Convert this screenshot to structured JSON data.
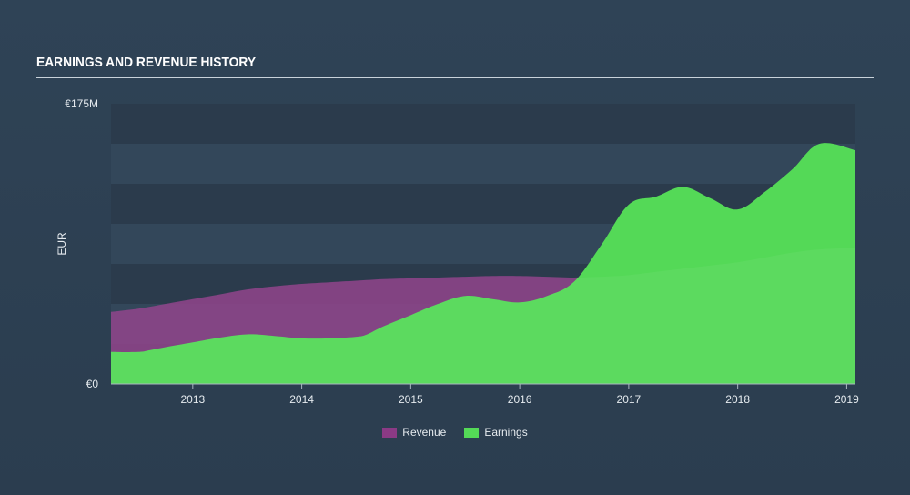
{
  "header": {
    "title": "EARNINGS AND REVENUE HISTORY"
  },
  "colors": {
    "revenue": "#8b3a85",
    "earnings": "#54d957",
    "earnings_band": "#4fcf55",
    "band_dark": "#2b3b4c",
    "band_light": "#33475a"
  },
  "chart_data": {
    "type": "area",
    "title": "EARNINGS AND REVENUE HISTORY",
    "ylabel": "EUR",
    "ylim": [
      0,
      175
    ],
    "y_tick_labels": {
      "top": "€175M",
      "bottom": "€0"
    },
    "xlim": [
      2012.25,
      2019.08
    ],
    "x_ticks": [
      {
        "value": 2013,
        "label": "2013"
      },
      {
        "value": 2014,
        "label": "2014"
      },
      {
        "value": 2015,
        "label": "2015"
      },
      {
        "value": 2016,
        "label": "2016"
      },
      {
        "value": 2017,
        "label": "2017"
      },
      {
        "value": 2018,
        "label": "2018"
      },
      {
        "value": 2019,
        "label": "2019"
      }
    ],
    "series": [
      {
        "name": "Revenue",
        "x": [
          2012.25,
          2012.5,
          2012.75,
          2013.0,
          2013.25,
          2013.5,
          2013.75,
          2014.0,
          2014.25,
          2014.5,
          2014.75,
          2015.0,
          2015.25,
          2015.5,
          2015.75,
          2016.0,
          2016.25,
          2016.5,
          2016.75,
          2017.0,
          2017.25,
          2017.5,
          2017.75,
          2018.0,
          2018.25,
          2018.5,
          2018.75,
          2019.08
        ],
        "values": [
          45,
          47,
          50,
          53,
          56,
          59,
          61,
          62.5,
          63.5,
          64.5,
          65.5,
          66,
          66.5,
          67,
          67.5,
          67.5,
          67,
          66.5,
          67,
          68,
          70,
          72,
          74,
          76,
          79,
          82,
          84,
          85
        ]
      },
      {
        "name": "Earnings",
        "x": [
          2012.25,
          2012.5,
          2012.6,
          2012.75,
          2013.0,
          2013.25,
          2013.5,
          2013.75,
          2014.0,
          2014.25,
          2014.5,
          2014.6,
          2014.75,
          2015.0,
          2015.25,
          2015.5,
          2015.75,
          2016.0,
          2016.25,
          2016.5,
          2016.75,
          2017.0,
          2017.25,
          2017.5,
          2017.75,
          2018.0,
          2018.25,
          2018.5,
          2018.75,
          2019.08
        ],
        "values": [
          20,
          20,
          21,
          23,
          26,
          29,
          31,
          30,
          28.5,
          28.5,
          29.5,
          31,
          36,
          43,
          50,
          55,
          53,
          51,
          55,
          64,
          87,
          112,
          117,
          123,
          116,
          109,
          120,
          134,
          150,
          146
        ]
      }
    ]
  },
  "legend": {
    "revenue_label": "Revenue",
    "earnings_label": "Earnings"
  }
}
